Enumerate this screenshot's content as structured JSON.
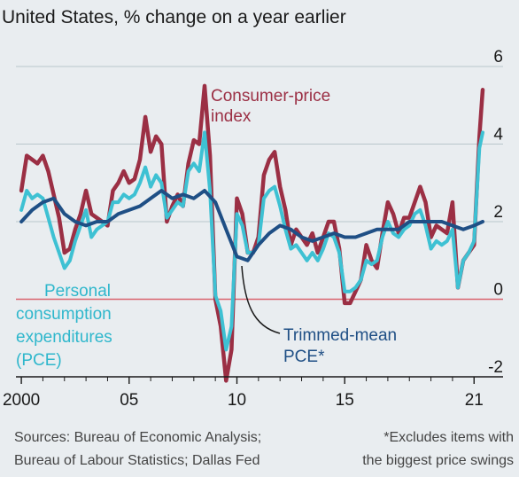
{
  "chart_data": {
    "type": "line",
    "title": "United States, % change on a year earlier",
    "xlabel": "",
    "ylabel": "",
    "xlim": [
      1999.75,
      2021.4
    ],
    "ylim": [
      -2,
      6
    ],
    "yticks": [
      {
        "value": 6,
        "label": "6"
      },
      {
        "value": 4,
        "label": "4"
      },
      {
        "value": 2,
        "label": "2"
      },
      {
        "value": 0,
        "label": "0"
      },
      {
        "value": -2,
        "label": "-2"
      }
    ],
    "xticks": [
      {
        "value": 2000,
        "label": "2000"
      },
      {
        "value": 2005,
        "label": "05"
      },
      {
        "value": 2010,
        "label": "10"
      },
      {
        "value": 2015,
        "label": "15"
      },
      {
        "value": 2021,
        "label": "21"
      }
    ],
    "grid": true,
    "series": [
      {
        "name": "Consumer-price index",
        "color": "#9b2f44",
        "x": [
          2000.0,
          2000.25,
          2000.5,
          2000.75,
          2001.0,
          2001.25,
          2001.5,
          2001.75,
          2002.0,
          2002.25,
          2002.5,
          2002.75,
          2003.0,
          2003.25,
          2003.5,
          2003.75,
          2004.0,
          2004.25,
          2004.5,
          2004.75,
          2005.0,
          2005.25,
          2005.5,
          2005.75,
          2006.0,
          2006.25,
          2006.5,
          2006.75,
          2007.0,
          2007.25,
          2007.5,
          2007.75,
          2008.0,
          2008.25,
          2008.5,
          2008.75,
          2009.0,
          2009.25,
          2009.5,
          2009.75,
          2010.0,
          2010.25,
          2010.5,
          2010.75,
          2011.0,
          2011.25,
          2011.5,
          2011.75,
          2012.0,
          2012.25,
          2012.5,
          2012.75,
          2013.0,
          2013.25,
          2013.5,
          2013.75,
          2014.0,
          2014.25,
          2014.5,
          2014.75,
          2015.0,
          2015.25,
          2015.5,
          2015.75,
          2016.0,
          2016.25,
          2016.5,
          2016.75,
          2017.0,
          2017.25,
          2017.5,
          2017.75,
          2018.0,
          2018.25,
          2018.5,
          2018.75,
          2019.0,
          2019.25,
          2019.5,
          2019.75,
          2020.0,
          2020.25,
          2020.5,
          2020.75,
          2021.0,
          2021.25,
          2021.4
        ],
        "values": [
          2.8,
          3.7,
          3.6,
          3.5,
          3.7,
          3.3,
          2.7,
          2.1,
          1.2,
          1.3,
          1.8,
          2.2,
          2.8,
          2.2,
          2.1,
          2.0,
          1.9,
          2.8,
          3.0,
          3.3,
          3.0,
          3.1,
          3.6,
          4.7,
          3.8,
          4.2,
          4.0,
          2.0,
          2.4,
          2.7,
          2.4,
          3.5,
          4.1,
          4.0,
          5.5,
          3.7,
          0.0,
          -0.7,
          -2.1,
          -1.3,
          2.6,
          2.2,
          1.2,
          1.2,
          1.6,
          3.2,
          3.6,
          3.8,
          2.9,
          2.3,
          1.4,
          1.8,
          1.6,
          1.4,
          1.7,
          1.2,
          1.6,
          2.0,
          2.0,
          1.3,
          -0.1,
          -0.1,
          0.2,
          0.5,
          1.4,
          1.0,
          0.8,
          1.7,
          2.5,
          2.2,
          1.7,
          2.1,
          2.1,
          2.5,
          2.9,
          2.5,
          1.6,
          1.9,
          1.8,
          1.7,
          2.5,
          0.3,
          1.0,
          1.2,
          1.4,
          4.2,
          5.4
        ]
      },
      {
        "name": "Personal consumption expenditures (PCE)",
        "color": "#3ec1d3",
        "x": [
          2000.0,
          2000.25,
          2000.5,
          2000.75,
          2001.0,
          2001.25,
          2001.5,
          2001.75,
          2002.0,
          2002.25,
          2002.5,
          2002.75,
          2003.0,
          2003.25,
          2003.5,
          2003.75,
          2004.0,
          2004.25,
          2004.5,
          2004.75,
          2005.0,
          2005.25,
          2005.5,
          2005.75,
          2006.0,
          2006.25,
          2006.5,
          2006.75,
          2007.0,
          2007.25,
          2007.5,
          2007.75,
          2008.0,
          2008.25,
          2008.5,
          2008.75,
          2009.0,
          2009.25,
          2009.5,
          2009.75,
          2010.0,
          2010.25,
          2010.5,
          2010.75,
          2011.0,
          2011.25,
          2011.5,
          2011.75,
          2012.0,
          2012.25,
          2012.5,
          2012.75,
          2013.0,
          2013.25,
          2013.5,
          2013.75,
          2014.0,
          2014.25,
          2014.5,
          2014.75,
          2015.0,
          2015.25,
          2015.5,
          2015.75,
          2016.0,
          2016.25,
          2016.5,
          2016.75,
          2017.0,
          2017.25,
          2017.5,
          2017.75,
          2018.0,
          2018.25,
          2018.5,
          2018.75,
          2019.0,
          2019.25,
          2019.5,
          2019.75,
          2020.0,
          2020.25,
          2020.5,
          2020.75,
          2021.0,
          2021.25,
          2021.4
        ],
        "values": [
          2.3,
          2.8,
          2.6,
          2.7,
          2.6,
          2.1,
          1.6,
          1.2,
          0.8,
          1.0,
          1.5,
          1.9,
          2.3,
          1.6,
          1.8,
          1.9,
          2.0,
          2.5,
          2.5,
          2.7,
          2.6,
          2.7,
          3.0,
          3.4,
          2.9,
          3.2,
          3.0,
          2.1,
          2.3,
          2.5,
          2.4,
          3.3,
          3.5,
          3.3,
          4.3,
          2.8,
          0.1,
          -0.3,
          -1.3,
          -0.7,
          2.2,
          1.9,
          1.2,
          1.2,
          1.4,
          2.6,
          2.8,
          2.9,
          2.4,
          1.8,
          1.3,
          1.4,
          1.2,
          1.0,
          1.2,
          1.0,
          1.3,
          1.7,
          1.6,
          1.2,
          0.2,
          0.2,
          0.3,
          0.5,
          1.0,
          0.9,
          1.0,
          1.6,
          2.0,
          1.7,
          1.6,
          1.8,
          1.9,
          2.2,
          2.3,
          1.9,
          1.3,
          1.5,
          1.4,
          1.5,
          1.8,
          0.3,
          1.0,
          1.2,
          1.5,
          3.9,
          4.3
        ]
      },
      {
        "name": "Trimmed-mean PCE*",
        "color": "#1f4f85",
        "x": [
          2000.0,
          2000.5,
          2001.0,
          2001.5,
          2002.0,
          2002.5,
          2003.0,
          2003.5,
          2004.0,
          2004.5,
          2005.0,
          2005.5,
          2006.0,
          2006.5,
          2007.0,
          2007.5,
          2008.0,
          2008.5,
          2009.0,
          2009.5,
          2010.0,
          2010.5,
          2011.0,
          2011.5,
          2012.0,
          2012.5,
          2013.0,
          2013.5,
          2014.0,
          2014.5,
          2015.0,
          2015.5,
          2016.0,
          2016.5,
          2017.0,
          2017.5,
          2018.0,
          2018.5,
          2019.0,
          2019.5,
          2020.0,
          2020.5,
          2021.0,
          2021.4
        ],
        "values": [
          2.0,
          2.3,
          2.5,
          2.6,
          2.2,
          2.0,
          1.9,
          2.0,
          2.0,
          2.2,
          2.3,
          2.4,
          2.6,
          2.8,
          2.6,
          2.7,
          2.6,
          2.8,
          2.5,
          1.8,
          1.1,
          1.0,
          1.4,
          1.7,
          1.9,
          1.8,
          1.6,
          1.5,
          1.6,
          1.7,
          1.6,
          1.6,
          1.7,
          1.8,
          1.8,
          1.8,
          2.0,
          2.0,
          2.0,
          2.0,
          1.9,
          1.8,
          1.9,
          2.0
        ]
      }
    ],
    "annotations": [
      {
        "text": "Consumer-price"
      },
      {
        "text": "index"
      },
      {
        "text": "Personal"
      },
      {
        "text": "consumption"
      },
      {
        "text": "expenditures"
      },
      {
        "text": "(PCE)"
      },
      {
        "text": "Trimmed-mean"
      },
      {
        "text": "PCE*"
      }
    ],
    "sources": [
      "Sources: Bureau of Economic Analysis;",
      "Bureau of Labour Statistics; Dallas Fed"
    ],
    "footnote": [
      "*Excludes items with",
      "the biggest price swings"
    ],
    "colors": {
      "background": "#e9edf0",
      "grid": "#b9c6cc",
      "zero_line": "#d9646e",
      "axis": "#1a1a1a"
    }
  }
}
